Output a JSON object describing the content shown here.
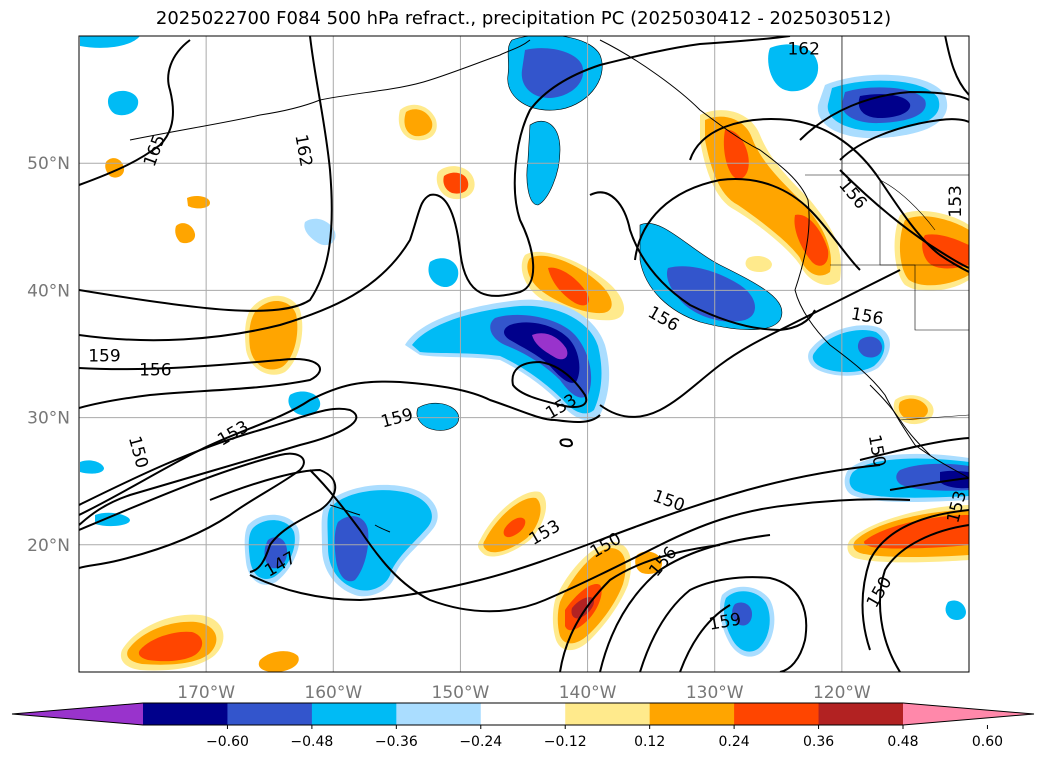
{
  "title": "2025022700 F084 500 hPa refract., precipitation PC (2025030412 - 2025030512)",
  "map": {
    "lon_range": [
      -180,
      -110
    ],
    "lat_range": [
      10,
      60
    ],
    "lat_ticks": [
      {
        "lat": 50,
        "label": "50°N"
      },
      {
        "lat": 40,
        "label": "40°N"
      },
      {
        "lat": 30,
        "label": "30°N"
      },
      {
        "lat": 20,
        "label": "20°N"
      }
    ],
    "lon_ticks": [
      {
        "lon": -170,
        "label": "170°W"
      },
      {
        "lon": -160,
        "label": "160°W"
      },
      {
        "lon": -150,
        "label": "150°W"
      },
      {
        "lon": -140,
        "label": "140°W"
      },
      {
        "lon": -130,
        "label": "130°W"
      },
      {
        "lon": -120,
        "label": "120°W"
      }
    ],
    "contour_labels": [
      {
        "text": "162",
        "lon": -123.0,
        "lat": 59.0,
        "rot": 0
      },
      {
        "text": "165",
        "lon": -174.1,
        "lat": 51.0,
        "rot": -70
      },
      {
        "text": "162",
        "lon": -162.3,
        "lat": 51.0,
        "rot": 80
      },
      {
        "text": "156",
        "lon": -119.1,
        "lat": 47.6,
        "rot": 50
      },
      {
        "text": "153",
        "lon": -111.1,
        "lat": 47.0,
        "rot": -90
      },
      {
        "text": "156",
        "lon": -134.0,
        "lat": 37.8,
        "rot": 30
      },
      {
        "text": "156",
        "lon": -118.0,
        "lat": 38.0,
        "rot": 10
      },
      {
        "text": "159",
        "lon": -178.0,
        "lat": 34.9,
        "rot": 0
      },
      {
        "text": "156",
        "lon": -174.0,
        "lat": 33.8,
        "rot": 0
      },
      {
        "text": "159",
        "lon": -155.0,
        "lat": 30.0,
        "rot": -15
      },
      {
        "text": "153",
        "lon": -142.1,
        "lat": 30.9,
        "rot": -30
      },
      {
        "text": "153",
        "lon": -167.9,
        "lat": 28.8,
        "rot": -30
      },
      {
        "text": "150",
        "lon": -175.3,
        "lat": 27.3,
        "rot": 75
      },
      {
        "text": "150",
        "lon": -117.2,
        "lat": 27.4,
        "rot": 80
      },
      {
        "text": "150",
        "lon": -133.6,
        "lat": 23.5,
        "rot": 20
      },
      {
        "text": "153",
        "lon": -111.0,
        "lat": 23.0,
        "rot": -75
      },
      {
        "text": "153",
        "lon": -143.4,
        "lat": 21.0,
        "rot": -30
      },
      {
        "text": "150",
        "lon": -138.6,
        "lat": 20.0,
        "rot": -30
      },
      {
        "text": "156",
        "lon": -134.1,
        "lat": 18.7,
        "rot": -50
      },
      {
        "text": "147",
        "lon": -164.2,
        "lat": 18.5,
        "rot": -30
      },
      {
        "text": "159",
        "lon": -129.2,
        "lat": 14.0,
        "rot": -10
      },
      {
        "text": "150",
        "lon": -117.1,
        "lat": 16.3,
        "rot": -60
      }
    ]
  },
  "colorbar": {
    "colors": [
      "#9933cc",
      "#00008b",
      "#3355cc",
      "#00bbf5",
      "#aaddff",
      "#ffffff",
      "#ffea8c",
      "#ffa500",
      "#ff4500",
      "#b22222",
      "#ff88aa"
    ],
    "ticks": [
      "−0.60",
      "−0.48",
      "−0.36",
      "−0.24",
      "−0.12",
      "0.12",
      "0.24",
      "0.36",
      "0.48",
      "0.60"
    ]
  }
}
